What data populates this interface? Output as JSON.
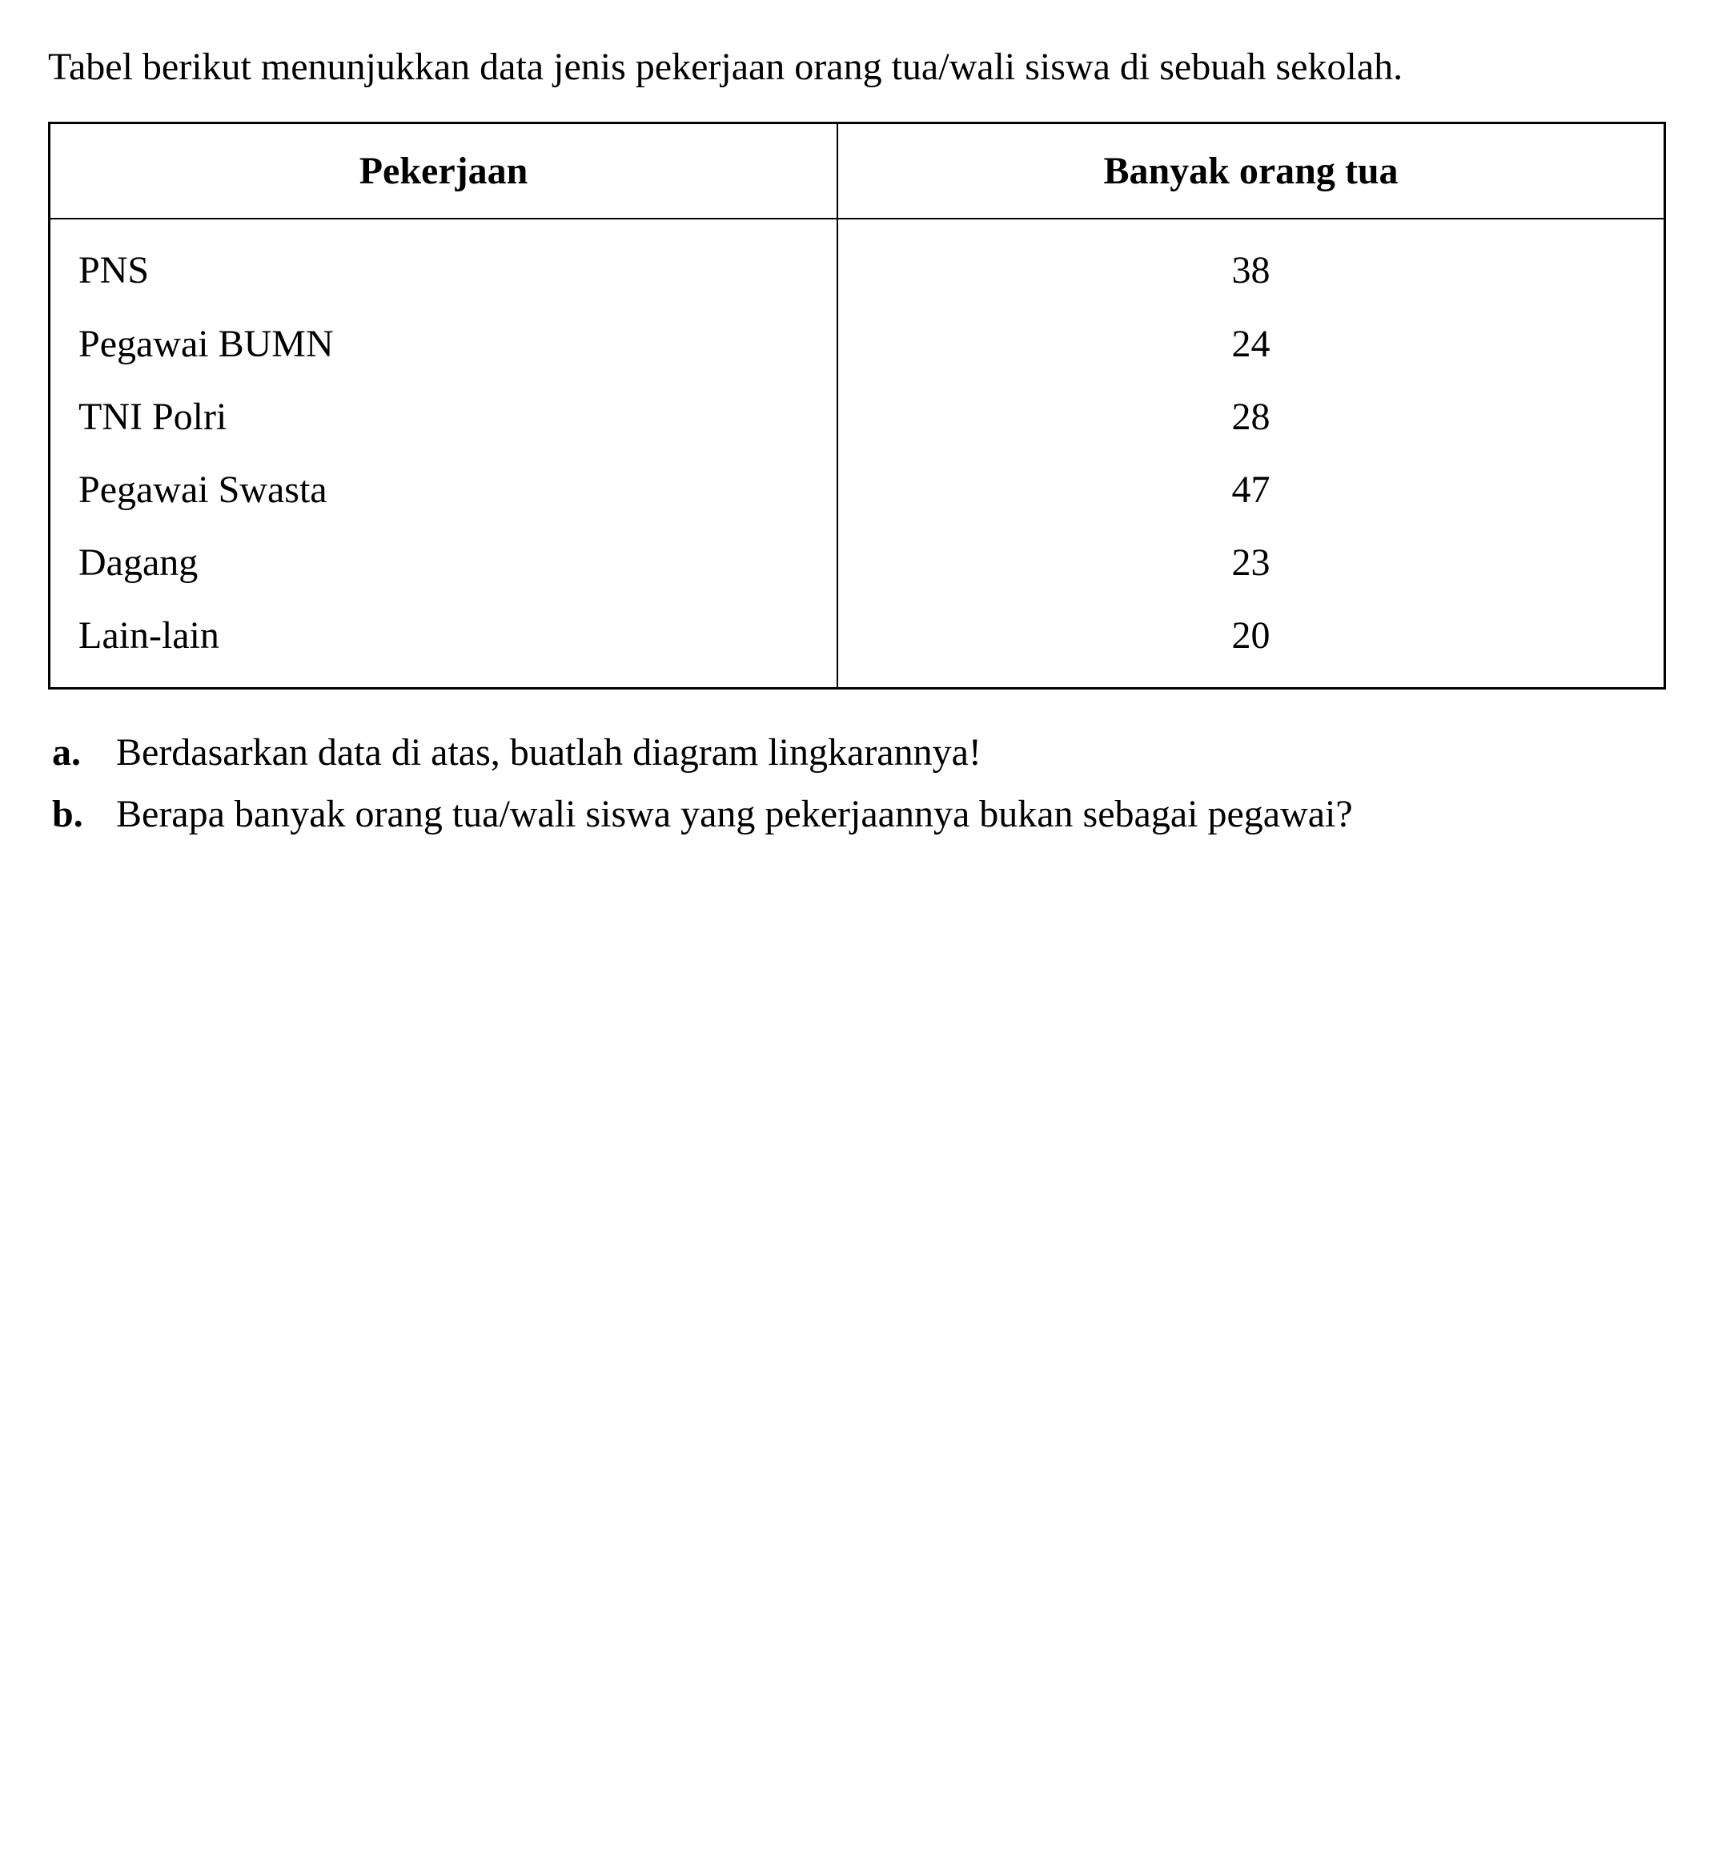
{
  "intro": "Tabel berikut menunjukkan data jenis peker­jaan orang tua/wali siswa di sebuah sekolah.",
  "table": {
    "type": "table",
    "columns": [
      "Pekerjaan",
      "Banyak orang tua"
    ],
    "rows": [
      [
        "PNS",
        "38"
      ],
      [
        "Pegawai BUMN",
        "24"
      ],
      [
        "TNI Polri",
        "28"
      ],
      [
        "Pegawai Swasta",
        "47"
      ],
      [
        "Dagang",
        "23"
      ],
      [
        "Lain-lain",
        "20"
      ]
    ],
    "border_color": "#000000",
    "background_color": "#ffffff",
    "header_fontweight": "bold",
    "col1_align": "left",
    "col2_align": "center"
  },
  "questions": [
    {
      "marker": "a.",
      "text": "Berdasarkan data di atas, buatlah diagram lingkarannya!"
    },
    {
      "marker": "b.",
      "text": "Berapa banyak orang tua/wali siswa yang pekerjaannya bukan sebagai pegawai?"
    }
  ],
  "styling": {
    "font_family": "Times New Roman",
    "font_size_pt": 36,
    "text_color": "#000000",
    "background_color": "#ffffff"
  }
}
